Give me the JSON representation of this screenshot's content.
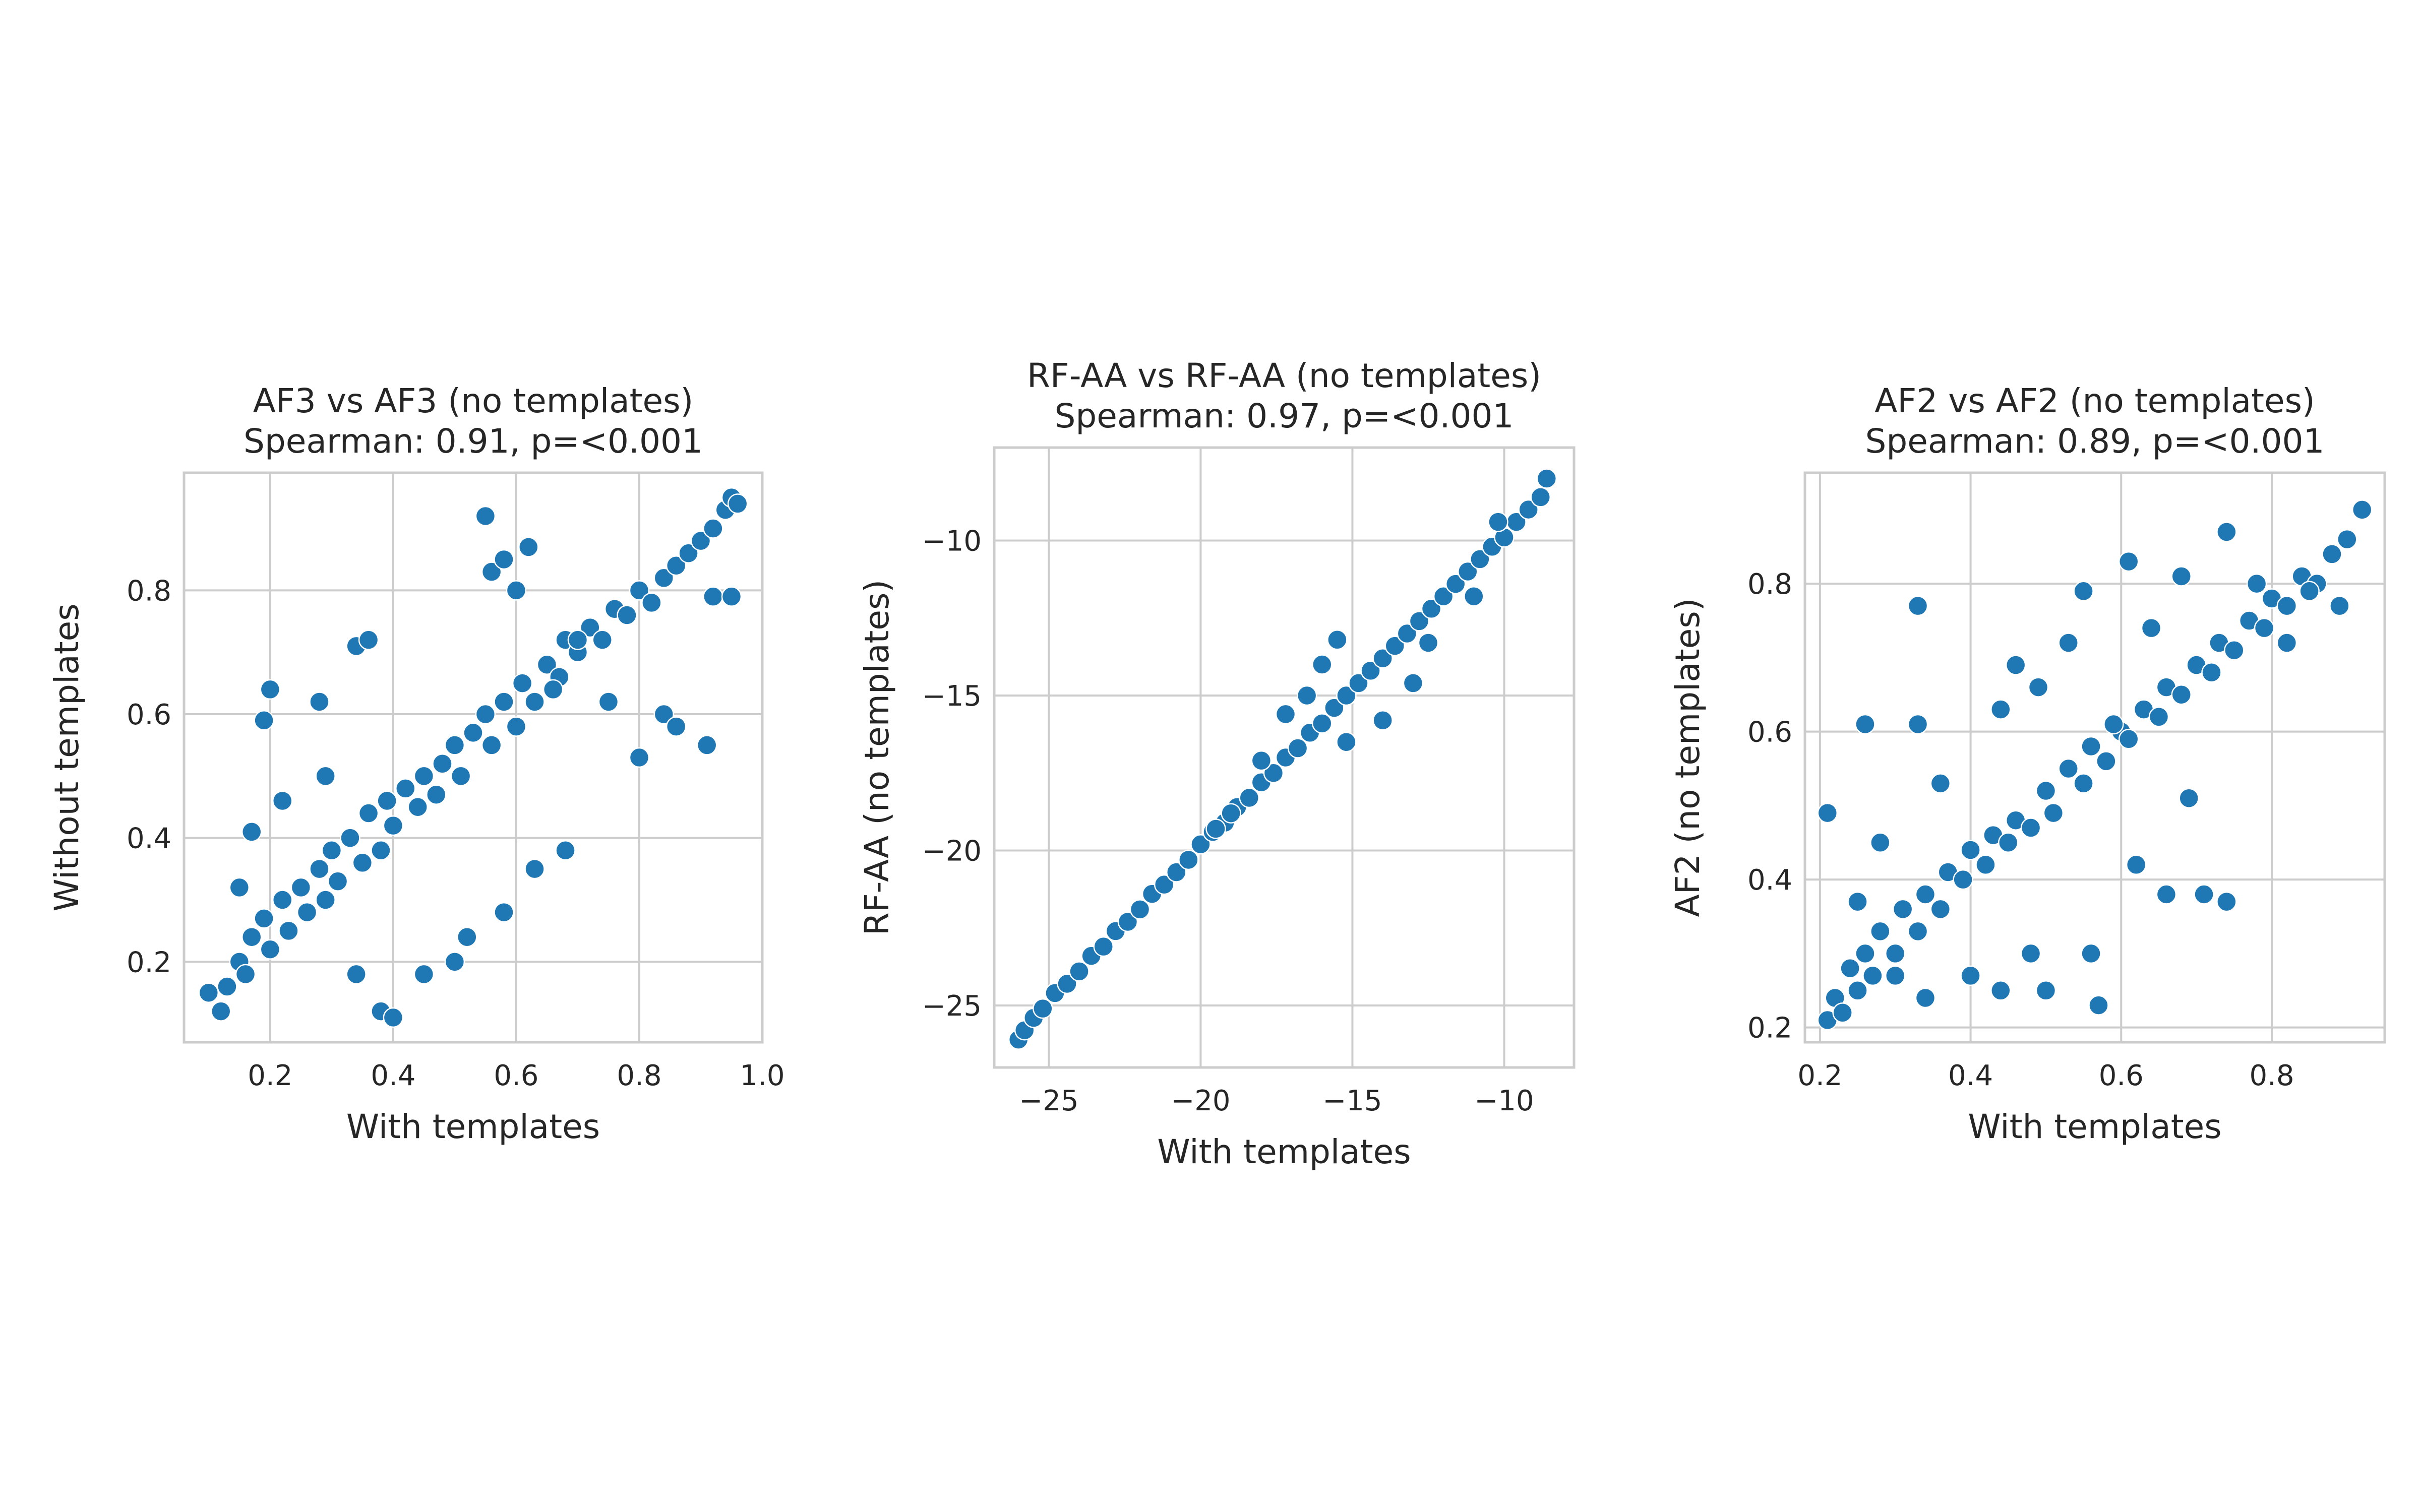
{
  "chart_data": [
    {
      "type": "scatter",
      "title": "AF3 vs AF3 (no templates)",
      "subtitle": "Spearman: 0.91, p=<0.001",
      "xlabel": "With templates",
      "ylabel": "Without templates",
      "xlim": [
        0.06,
        1.0
      ],
      "ylim": [
        0.07,
        0.99
      ],
      "xticks": [
        "0.2",
        "0.4",
        "0.6",
        "0.8",
        "1.0"
      ],
      "xtick_values": [
        0.2,
        0.4,
        0.6,
        0.8,
        1.0
      ],
      "yticks": [
        "0.2",
        "0.4",
        "0.6",
        "0.8"
      ],
      "ytick_values": [
        0.2,
        0.4,
        0.6,
        0.8
      ],
      "grid": true,
      "color": "#1f77b4",
      "x": [
        0.1,
        0.12,
        0.13,
        0.15,
        0.16,
        0.17,
        0.19,
        0.2,
        0.22,
        0.23,
        0.25,
        0.26,
        0.28,
        0.29,
        0.3,
        0.31,
        0.33,
        0.35,
        0.36,
        0.38,
        0.39,
        0.4,
        0.42,
        0.44,
        0.45,
        0.47,
        0.48,
        0.5,
        0.51,
        0.53,
        0.55,
        0.56,
        0.58,
        0.6,
        0.61,
        0.63,
        0.65,
        0.67,
        0.68,
        0.7,
        0.72,
        0.74,
        0.76,
        0.78,
        0.8,
        0.82,
        0.84,
        0.86,
        0.88,
        0.9,
        0.92,
        0.94,
        0.95,
        0.96,
        0.19,
        0.2,
        0.22,
        0.28,
        0.29,
        0.34,
        0.36,
        0.55,
        0.56,
        0.58,
        0.6,
        0.62,
        0.66,
        0.7,
        0.75,
        0.8,
        0.84,
        0.86,
        0.91,
        0.92,
        0.95,
        0.38,
        0.4,
        0.45,
        0.5,
        0.52,
        0.58,
        0.63,
        0.68,
        0.34,
        0.17,
        0.15
      ],
      "y": [
        0.15,
        0.12,
        0.16,
        0.2,
        0.18,
        0.24,
        0.27,
        0.22,
        0.3,
        0.25,
        0.32,
        0.28,
        0.35,
        0.3,
        0.38,
        0.33,
        0.4,
        0.36,
        0.44,
        0.38,
        0.46,
        0.42,
        0.48,
        0.45,
        0.5,
        0.47,
        0.52,
        0.55,
        0.5,
        0.57,
        0.6,
        0.55,
        0.62,
        0.58,
        0.65,
        0.62,
        0.68,
        0.66,
        0.72,
        0.7,
        0.74,
        0.72,
        0.77,
        0.76,
        0.8,
        0.78,
        0.82,
        0.84,
        0.86,
        0.88,
        0.9,
        0.93,
        0.95,
        0.94,
        0.59,
        0.64,
        0.46,
        0.62,
        0.5,
        0.71,
        0.72,
        0.92,
        0.83,
        0.85,
        0.8,
        0.87,
        0.64,
        0.72,
        0.62,
        0.53,
        0.6,
        0.58,
        0.55,
        0.79,
        0.79,
        0.12,
        0.11,
        0.18,
        0.2,
        0.24,
        0.28,
        0.35,
        0.38,
        0.18,
        0.41,
        0.32
      ]
    },
    {
      "type": "scatter",
      "title": "RF-AA vs RF-AA (no templates)",
      "subtitle": "Spearman: 0.97, p=<0.001",
      "xlabel": "With templates",
      "ylabel": "RF-AA (no templates)",
      "xlim": [
        -26.8,
        -7.7
      ],
      "ylim": [
        -27.0,
        -7.0
      ],
      "xticks": [
        "−25",
        "−20",
        "−15",
        "−10"
      ],
      "xtick_values": [
        -25,
        -20,
        -15,
        -10
      ],
      "yticks": [
        "−25",
        "−20",
        "−15",
        "−10"
      ],
      "ytick_values": [
        -25,
        -20,
        -15,
        -10
      ],
      "grid": true,
      "color": "#1f77b4",
      "x": [
        -26.0,
        -25.8,
        -25.5,
        -25.2,
        -24.8,
        -24.4,
        -24.0,
        -23.6,
        -23.2,
        -22.8,
        -22.4,
        -22.0,
        -21.6,
        -21.2,
        -20.8,
        -20.4,
        -20.0,
        -19.6,
        -19.2,
        -18.8,
        -18.4,
        -18.0,
        -17.6,
        -17.2,
        -16.8,
        -16.4,
        -16.0,
        -15.6,
        -15.2,
        -14.8,
        -14.4,
        -14.0,
        -13.6,
        -13.2,
        -12.8,
        -12.4,
        -12.0,
        -11.6,
        -11.2,
        -10.8,
        -10.4,
        -10.0,
        -9.6,
        -9.2,
        -8.8,
        -8.6,
        -19.5,
        -18.0,
        -16.5,
        -15.2,
        -14.0,
        -13.0,
        -12.5,
        -15.5,
        -16.0,
        -17.2,
        -19.0,
        -11.0,
        -10.2
      ],
      "y": [
        -26.1,
        -25.8,
        -25.4,
        -25.1,
        -24.6,
        -24.3,
        -23.9,
        -23.4,
        -23.1,
        -22.6,
        -22.3,
        -21.9,
        -21.4,
        -21.1,
        -20.7,
        -20.3,
        -19.8,
        -19.4,
        -19.1,
        -18.6,
        -18.3,
        -17.8,
        -17.5,
        -17.0,
        -16.7,
        -16.2,
        -15.9,
        -15.4,
        -15.0,
        -14.6,
        -14.2,
        -13.8,
        -13.4,
        -13.0,
        -12.6,
        -12.2,
        -11.8,
        -11.4,
        -11.0,
        -10.6,
        -10.2,
        -9.9,
        -9.4,
        -9.0,
        -8.6,
        -8.0,
        -19.3,
        -17.1,
        -15.0,
        -16.5,
        -15.8,
        -14.6,
        -13.3,
        -13.2,
        -14.0,
        -15.6,
        -18.8,
        -11.8,
        -9.4
      ]
    },
    {
      "type": "scatter",
      "title": "AF2 vs AF2 (no templates)",
      "subtitle": "Spearman: 0.89, p=<0.001",
      "xlabel": "With templates",
      "ylabel": "AF2 (no templates)",
      "xlim": [
        0.18,
        0.95
      ],
      "ylim": [
        0.18,
        0.95
      ],
      "xticks": [
        "0.2",
        "0.4",
        "0.6",
        "0.8"
      ],
      "xtick_values": [
        0.2,
        0.4,
        0.6,
        0.8
      ],
      "yticks": [
        "0.2",
        "0.4",
        "0.6",
        "0.8"
      ],
      "ytick_values": [
        0.2,
        0.4,
        0.6,
        0.8
      ],
      "grid": true,
      "color": "#1f77b4",
      "x": [
        0.21,
        0.22,
        0.23,
        0.24,
        0.25,
        0.26,
        0.27,
        0.28,
        0.3,
        0.31,
        0.33,
        0.34,
        0.36,
        0.37,
        0.39,
        0.4,
        0.42,
        0.43,
        0.45,
        0.46,
        0.48,
        0.5,
        0.51,
        0.53,
        0.55,
        0.56,
        0.58,
        0.6,
        0.61,
        0.63,
        0.65,
        0.66,
        0.68,
        0.7,
        0.72,
        0.73,
        0.75,
        0.77,
        0.79,
        0.8,
        0.82,
        0.84,
        0.86,
        0.88,
        0.9,
        0.92,
        0.21,
        0.26,
        0.33,
        0.33,
        0.36,
        0.44,
        0.46,
        0.49,
        0.53,
        0.55,
        0.59,
        0.61,
        0.64,
        0.68,
        0.74,
        0.69,
        0.78,
        0.25,
        0.28,
        0.3,
        0.34,
        0.4,
        0.44,
        0.48,
        0.5,
        0.56,
        0.57,
        0.62,
        0.66,
        0.71,
        0.74,
        0.82,
        0.85,
        0.89
      ],
      "y": [
        0.21,
        0.24,
        0.22,
        0.28,
        0.25,
        0.3,
        0.27,
        0.33,
        0.3,
        0.36,
        0.33,
        0.38,
        0.36,
        0.41,
        0.4,
        0.44,
        0.42,
        0.46,
        0.45,
        0.48,
        0.47,
        0.52,
        0.49,
        0.55,
        0.53,
        0.58,
        0.56,
        0.6,
        0.59,
        0.63,
        0.62,
        0.66,
        0.65,
        0.69,
        0.68,
        0.72,
        0.71,
        0.75,
        0.74,
        0.78,
        0.77,
        0.81,
        0.8,
        0.84,
        0.86,
        0.9,
        0.49,
        0.61,
        0.77,
        0.61,
        0.53,
        0.63,
        0.69,
        0.66,
        0.72,
        0.79,
        0.61,
        0.83,
        0.74,
        0.81,
        0.87,
        0.51,
        0.8,
        0.37,
        0.45,
        0.27,
        0.24,
        0.27,
        0.25,
        0.3,
        0.25,
        0.3,
        0.23,
        0.42,
        0.38,
        0.38,
        0.37,
        0.72,
        0.79,
        0.77
      ]
    }
  ]
}
